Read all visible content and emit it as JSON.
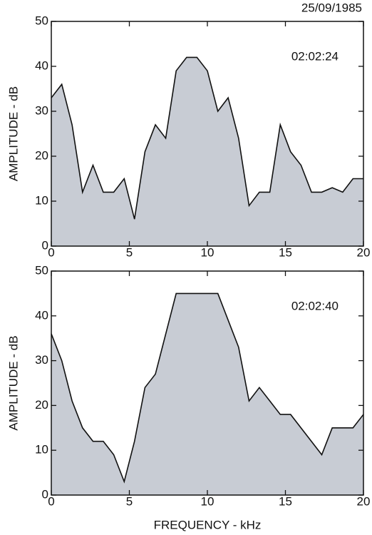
{
  "chart_data": [
    {
      "type": "area",
      "subtitle": "25/09/1985",
      "annotation": "02:02:24",
      "ylabel": "AMPLITUDE - dB",
      "x": [
        0,
        0.67,
        1.33,
        2,
        2.67,
        3.33,
        4,
        4.67,
        5.33,
        6,
        6.67,
        7.33,
        8,
        8.67,
        9.33,
        10,
        10.67,
        11.33,
        12,
        12.67,
        13.33,
        14,
        14.67,
        15.33,
        16,
        16.67,
        17.33,
        18,
        18.67,
        19.33,
        20
      ],
      "values": [
        33,
        36,
        27,
        12,
        18,
        12,
        12,
        15,
        6,
        21,
        27,
        24,
        39,
        42,
        42,
        39,
        30,
        33,
        24,
        9,
        12,
        12,
        27,
        21,
        18,
        12,
        12,
        13,
        12,
        15,
        15
      ],
      "color": "#c8ccd4",
      "xlim": [
        0,
        20
      ],
      "ylim": [
        0,
        50
      ],
      "xticks": [
        0,
        5,
        10,
        15,
        20
      ],
      "yticks": [
        0,
        10,
        20,
        30,
        40,
        50
      ]
    },
    {
      "type": "area",
      "annotation": "02:02:40",
      "ylabel": "AMPLITUDE - dB",
      "xlabel": "FREQUENCY - kHz",
      "x": [
        0,
        0.67,
        1.33,
        2,
        2.67,
        3.33,
        4,
        4.67,
        5.33,
        6,
        6.67,
        8,
        10.67,
        12,
        12.67,
        13.33,
        14.67,
        15.33,
        17.33,
        18,
        19.33,
        20
      ],
      "values": [
        36,
        30,
        21,
        15,
        12,
        12,
        9,
        3,
        12,
        24,
        27,
        45,
        45,
        33,
        21,
        24,
        18,
        18,
        9,
        15,
        15,
        18
      ],
      "color": "#c8ccd4",
      "xlim": [
        0,
        20
      ],
      "ylim": [
        0,
        50
      ],
      "xticks": [
        0,
        5,
        10,
        15,
        20
      ],
      "yticks": [
        0,
        10,
        20,
        30,
        40,
        50
      ]
    }
  ]
}
